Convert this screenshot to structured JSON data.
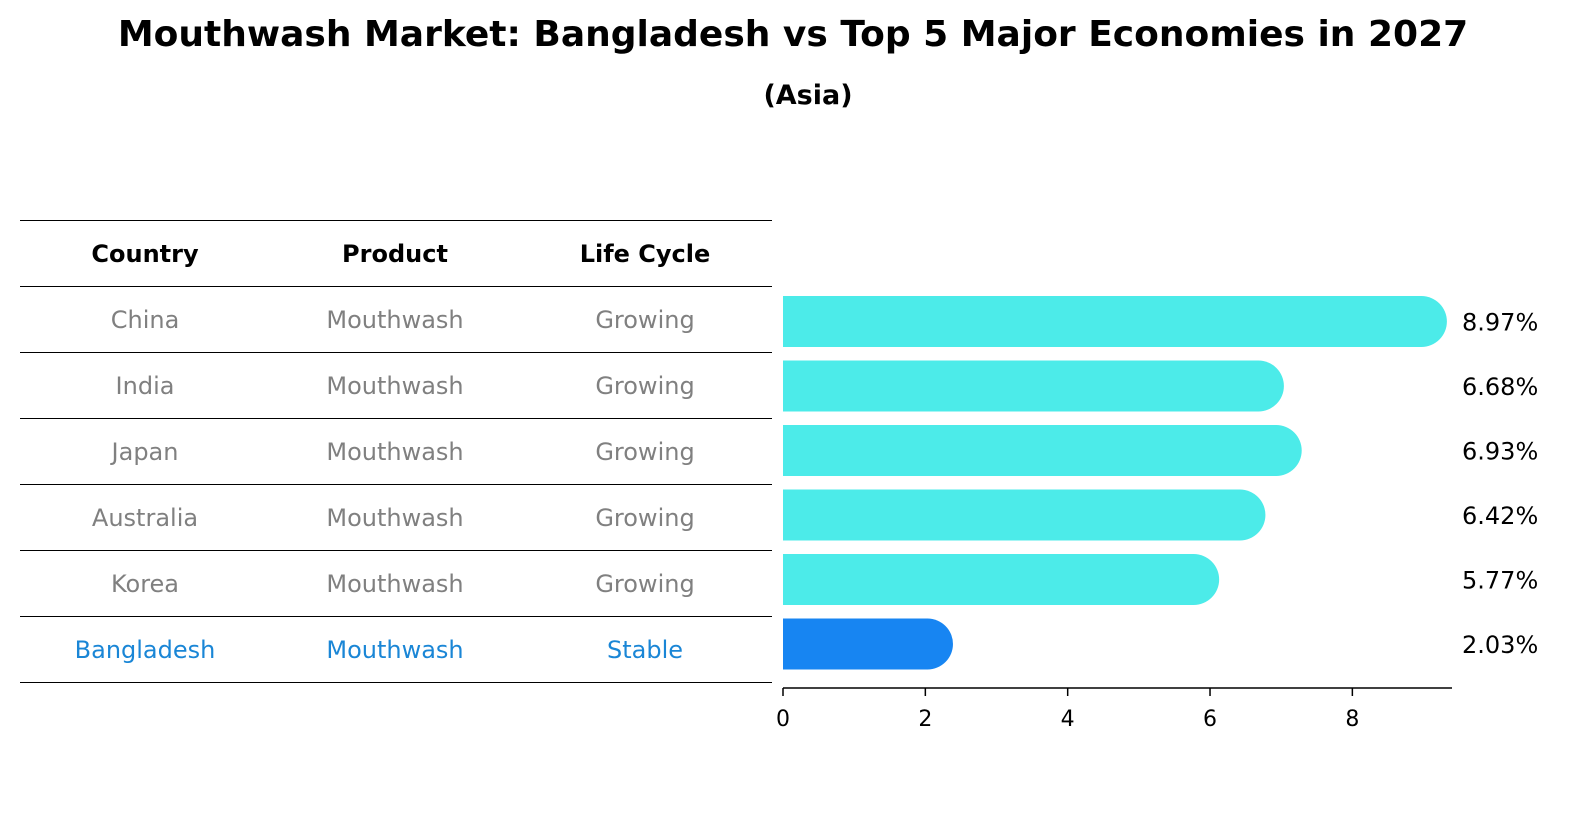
{
  "chart_data": {
    "type": "bar",
    "title": "Mouthwash Market: Bangladesh vs Top 5 Major Economies in 2027",
    "subtitle": "(Asia)",
    "table": {
      "headers": [
        "Country",
        "Product",
        "Life Cycle"
      ],
      "rows": [
        {
          "country": "China",
          "product": "Mouthwash",
          "life_cycle": "Growing"
        },
        {
          "country": "India",
          "product": "Mouthwash",
          "life_cycle": "Growing"
        },
        {
          "country": "Japan",
          "product": "Mouthwash",
          "life_cycle": "Growing"
        },
        {
          "country": "Australia",
          "product": "Mouthwash",
          "life_cycle": "Growing"
        },
        {
          "country": "Korea",
          "product": "Mouthwash",
          "life_cycle": "Growing"
        },
        {
          "country": "Bangladesh",
          "product": "Mouthwash",
          "life_cycle": "Stable"
        }
      ]
    },
    "categories": [
      "China",
      "India",
      "Japan",
      "Australia",
      "Korea",
      "Bangladesh"
    ],
    "values": [
      8.97,
      6.68,
      6.93,
      6.42,
      5.77,
      2.03
    ],
    "value_labels": [
      "8.97%",
      "6.68%",
      "6.93%",
      "6.42%",
      "5.77%",
      "2.03%"
    ],
    "highlight": "Bangladesh",
    "xlim": [
      0,
      9.4
    ],
    "xticks": [
      0,
      2,
      4,
      6,
      8
    ],
    "colors": {
      "bar": "#4cebe9",
      "highlight_bar": "#1785f2",
      "highlight_text": "#1a86d6",
      "muted_text": "#808080"
    }
  }
}
